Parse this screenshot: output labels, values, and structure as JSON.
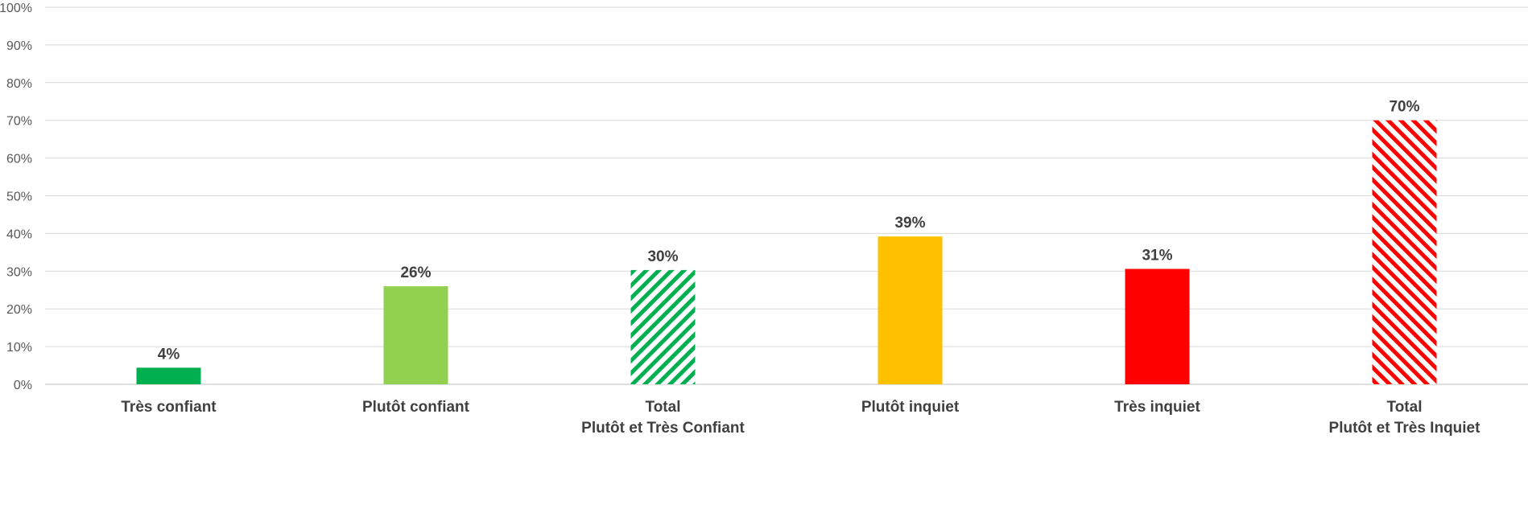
{
  "chart_data": {
    "type": "bar",
    "categories": [
      [
        "Très confiant"
      ],
      [
        "Plutôt confiant"
      ],
      [
        "Total",
        "Plutôt et Très Confiant"
      ],
      [
        "Plutôt inquiet"
      ],
      [
        "Très inquiet"
      ],
      [
        "Total",
        "Plutôt et Très Inquiet"
      ]
    ],
    "values": [
      4.4,
      26,
      30.3,
      39.2,
      30.6,
      70
    ],
    "data_labels": [
      "4%",
      "26%",
      "30%",
      "39%",
      "31%",
      "70%"
    ],
    "colors": [
      "#00b050",
      "#92d050",
      "#00b050",
      "#ffc000",
      "#ff0000",
      "#ff0000"
    ],
    "hatched": [
      false,
      false,
      true,
      false,
      false,
      true
    ],
    "ylim": [
      0,
      100
    ],
    "yticks": [
      0,
      10,
      20,
      30,
      40,
      50,
      60,
      70,
      80,
      90,
      100
    ],
    "ytick_labels": [
      "0%",
      "10%",
      "20%",
      "30%",
      "40%",
      "50%",
      "60%",
      "70%",
      "80%",
      "90%",
      "100%"
    ],
    "grid": true,
    "legend": "none",
    "title": "",
    "xlabel": "",
    "ylabel": ""
  }
}
